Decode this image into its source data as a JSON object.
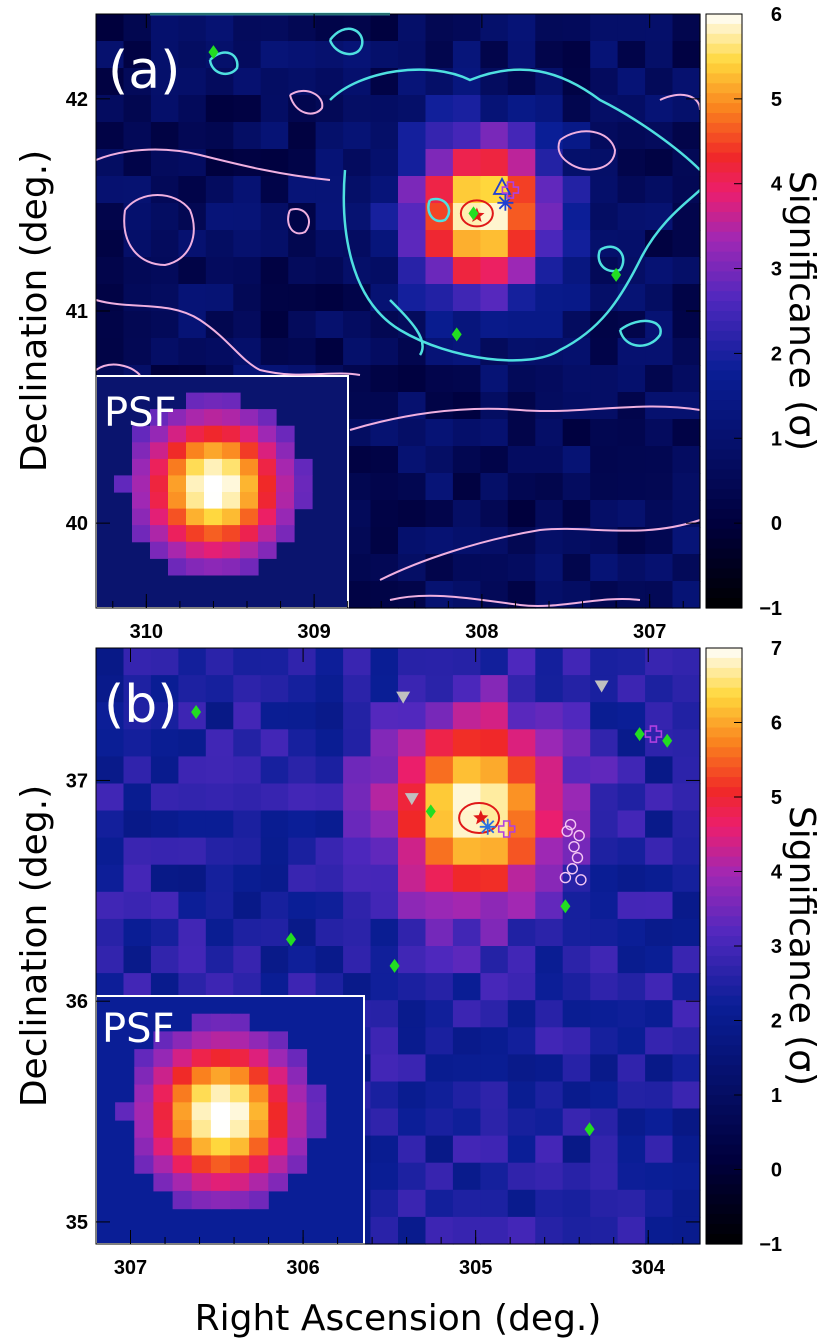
{
  "figure": {
    "xlabel": "Right Ascension (deg.)"
  },
  "chart_data": [
    {
      "type": "heatmap",
      "panel_label": "(a)",
      "inset_label": "PSF",
      "xlabel": "",
      "ylabel": "Declination (deg.)",
      "colorbar_label": "Significance (σ)",
      "xlim": [
        310.3,
        306.7
      ],
      "ylim": [
        39.6,
        42.4
      ],
      "x_ticks": [
        "310",
        "309",
        "308",
        "307"
      ],
      "x_tick_values": [
        310,
        309,
        308,
        307
      ],
      "y_ticks": [
        "40",
        "41",
        "42"
      ],
      "y_tick_values": [
        40,
        41,
        42
      ],
      "colorbar": {
        "min": -1,
        "max": 6,
        "ticks": [
          "6",
          "5",
          "4",
          "3",
          "2",
          "1",
          "0",
          "−1"
        ],
        "tick_values": [
          6,
          5,
          4,
          3,
          2,
          1,
          0,
          -1
        ]
      },
      "background_level": 0.6,
      "source": {
        "ra": 308.0,
        "dec": 41.45,
        "peak": 6.0,
        "sigma_ra": 0.32,
        "sigma_dec": 0.28
      },
      "markers": [
        {
          "kind": "red-star",
          "ra": 308.03,
          "dec": 41.45
        },
        {
          "kind": "red-ellipse",
          "ra": 308.03,
          "dec": 41.46
        },
        {
          "kind": "blue-triangle",
          "ra": 307.88,
          "dec": 41.58
        },
        {
          "kind": "blue-asterisk",
          "ra": 307.86,
          "dec": 41.51
        },
        {
          "kind": "purple-cross",
          "ra": 307.83,
          "dec": 41.57
        },
        {
          "kind": "green-diamond",
          "ra": 309.6,
          "dec": 42.22
        },
        {
          "kind": "green-diamond",
          "ra": 308.05,
          "dec": 41.46
        },
        {
          "kind": "green-diamond",
          "ra": 307.2,
          "dec": 41.17
        },
        {
          "kind": "green-diamond",
          "ra": 308.15,
          "dec": 40.89
        }
      ],
      "colors": {
        "contour_cyan": "#4fe0e0",
        "contour_pink": "#f0b0e0",
        "marker_green": "#22dd22",
        "marker_red": "#e01818",
        "marker_blue": "#2040d0",
        "marker_purple": "#b040e0"
      }
    },
    {
      "type": "heatmap",
      "panel_label": "(b)",
      "inset_label": "PSF",
      "xlabel": "Right Ascension (deg.)",
      "ylabel": "Declination (deg.)",
      "colorbar_label": "Significance (σ)",
      "xlim": [
        307.2,
        303.7
      ],
      "ylim": [
        34.9,
        37.6
      ],
      "x_ticks": [
        "307",
        "306",
        "305",
        "304"
      ],
      "x_tick_values": [
        307,
        306,
        305,
        304
      ],
      "y_ticks": [
        "35",
        "36",
        "37"
      ],
      "y_tick_values": [
        35,
        36,
        37
      ],
      "colorbar": {
        "min": -1,
        "max": 7,
        "ticks": [
          "7",
          "6",
          "5",
          "4",
          "3",
          "2",
          "1",
          "0",
          "−1"
        ],
        "tick_values": [
          7,
          6,
          5,
          4,
          3,
          2,
          1,
          0,
          -1
        ]
      },
      "background_level": 2.4,
      "source": {
        "ra": 305.0,
        "dec": 36.87,
        "peak": 7.0,
        "sigma_ra": 0.35,
        "sigma_dec": 0.3
      },
      "markers": [
        {
          "kind": "red-star",
          "ra": 304.97,
          "dec": 36.83
        },
        {
          "kind": "red-ellipse",
          "ra": 304.98,
          "dec": 36.83
        },
        {
          "kind": "blue-asterisk",
          "ra": 304.93,
          "dec": 36.79
        },
        {
          "kind": "purple-cross",
          "ra": 304.82,
          "dec": 36.78
        },
        {
          "kind": "purple-cross",
          "ra": 303.97,
          "dec": 37.21
        },
        {
          "kind": "gray-triangle",
          "ra": 305.42,
          "dec": 37.38
        },
        {
          "kind": "gray-triangle",
          "ra": 305.37,
          "dec": 36.92
        },
        {
          "kind": "gray-triangle",
          "ra": 304.27,
          "dec": 37.43
        },
        {
          "kind": "green-diamond",
          "ra": 306.62,
          "dec": 37.31
        },
        {
          "kind": "green-diamond",
          "ra": 305.26,
          "dec": 36.86
        },
        {
          "kind": "green-diamond",
          "ra": 304.48,
          "dec": 36.43
        },
        {
          "kind": "green-diamond",
          "ra": 306.07,
          "dec": 36.28
        },
        {
          "kind": "green-diamond",
          "ra": 305.47,
          "dec": 36.16
        },
        {
          "kind": "green-diamond",
          "ra": 304.34,
          "dec": 35.42
        },
        {
          "kind": "green-diamond",
          "ra": 304.05,
          "dec": 37.21
        },
        {
          "kind": "green-diamond",
          "ra": 303.89,
          "dec": 37.18
        },
        {
          "kind": "white-circle",
          "ra": 304.45,
          "dec": 36.8
        },
        {
          "kind": "white-circle",
          "ra": 304.4,
          "dec": 36.75
        },
        {
          "kind": "white-circle",
          "ra": 304.43,
          "dec": 36.7
        },
        {
          "kind": "white-circle",
          "ra": 304.41,
          "dec": 36.65
        },
        {
          "kind": "white-circle",
          "ra": 304.44,
          "dec": 36.6
        },
        {
          "kind": "white-circle",
          "ra": 304.48,
          "dec": 36.56
        },
        {
          "kind": "white-circle",
          "ra": 304.39,
          "dec": 36.55
        },
        {
          "kind": "white-circle",
          "ra": 304.47,
          "dec": 36.77
        }
      ],
      "colors": {
        "marker_green": "#22dd22",
        "marker_red": "#e01818",
        "marker_blue": "#2a70e0",
        "marker_purple": "#b040e0",
        "marker_gray": "#c0c0c0",
        "marker_white": "#f4c6f4"
      }
    }
  ]
}
